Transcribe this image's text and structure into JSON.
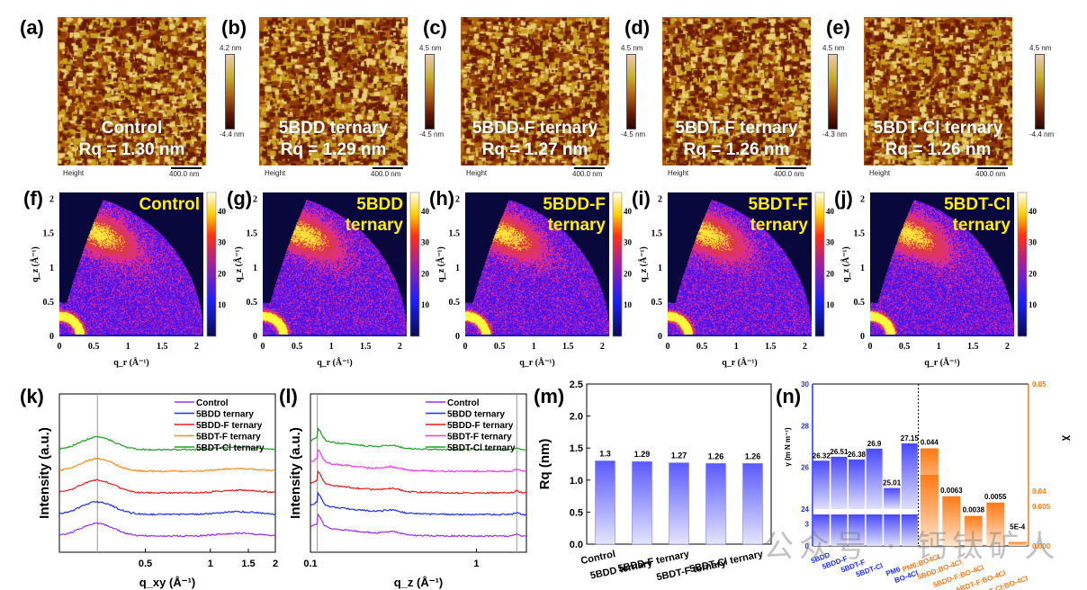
{
  "figure": {
    "panel_labels": [
      "(a)",
      "(b)",
      "(c)",
      "(d)",
      "(e)",
      "(f)",
      "(g)",
      "(h)",
      "(i)",
      "(j)",
      "(k)",
      "(l)",
      "(m)",
      "(n)"
    ],
    "watermark": "公众号 · 钙钛矿人"
  },
  "afm": [
    {
      "label": "(a)",
      "sample": "Control",
      "rq": "Rq = 1.30 nm",
      "cbar_max": "4.2 nm",
      "cbar_min": "-4.4 nm",
      "footer_left": "Height",
      "scale": "400.0 nm"
    },
    {
      "label": "(b)",
      "sample": "5BDD ternary",
      "rq": "Rq = 1.29 nm",
      "cbar_max": "4.5 nm",
      "cbar_min": "-4.5 nm",
      "footer_left": "Height",
      "scale": "400.0 nm"
    },
    {
      "label": "(c)",
      "sample": "5BDD-F ternary",
      "rq": "Rq = 1.27 nm",
      "cbar_max": "4.5 nm",
      "cbar_min": "-4.5 nm",
      "footer_left": "Height",
      "scale": "400.0 nm"
    },
    {
      "label": "(d)",
      "sample": "5BDT-F ternary",
      "rq": "Rq = 1.26 nm",
      "cbar_max": "4.5 nm",
      "cbar_min": "-4.3 nm",
      "footer_left": "Height",
      "scale": "400.0 nm"
    },
    {
      "label": "(e)",
      "sample": "5BDT-Cl ternary",
      "rq": "Rq = 1.26 nm",
      "cbar_max": "4.5 nm",
      "cbar_min": "-4.4 nm",
      "footer_left": "Height",
      "scale": "400.0 nm"
    }
  ],
  "giwaxs": [
    {
      "label": "(f)",
      "line1": "Control",
      "line2": ""
    },
    {
      "label": "(g)",
      "line1": "5BDD",
      "line2": "ternary"
    },
    {
      "label": "(h)",
      "line1": "5BDD-F",
      "line2": "ternary"
    },
    {
      "label": "(i)",
      "line1": "5BDT-F",
      "line2": "ternary"
    },
    {
      "label": "(j)",
      "line1": "5BDT-Cl",
      "line2": "ternary"
    }
  ],
  "giwaxs_axes": {
    "xlabel": "q_r (Å⁻¹)",
    "ylabel": "q_z (Å⁻¹)",
    "xticks": [
      "0",
      "0.5",
      "1",
      "1.5",
      "2"
    ],
    "yticks": [
      "0",
      "0.5",
      "1",
      "1.5",
      "2"
    ],
    "cbar_ticks": [
      "10",
      "20",
      "30",
      "40"
    ]
  },
  "chart_data": [
    {
      "panel": "(k)",
      "type": "line",
      "title": "",
      "xlabel": "q_xy (Å⁻¹)",
      "ylabel": "Intensity (a.u.)",
      "xscale": "log",
      "xlim": [
        0.2,
        2
      ],
      "xticks": [
        "0.5",
        "1",
        "1.5",
        "2"
      ],
      "reference_line_x": 0.3,
      "series": [
        {
          "name": "Control",
          "color": "#9b30ff",
          "offset": 0,
          "peaks": [
            {
              "x": 0.3,
              "h": 0.9
            },
            {
              "x": 1.35,
              "h": 0.12
            }
          ]
        },
        {
          "name": "5BDD ternary",
          "color": "#1f2fff",
          "offset": 1,
          "peaks": [
            {
              "x": 0.3,
              "h": 0.7
            },
            {
              "x": 1.35,
              "h": 0.1
            }
          ]
        },
        {
          "name": "5BDD-F ternary",
          "color": "#ee1c1c",
          "offset": 2,
          "peaks": [
            {
              "x": 0.3,
              "h": 0.8
            },
            {
              "x": 1.35,
              "h": 0.08
            }
          ]
        },
        {
          "name": "5BDT-F ternary",
          "color": "#ff8c1a",
          "offset": 3,
          "peaks": [
            {
              "x": 0.3,
              "h": 0.75
            },
            {
              "x": 1.35,
              "h": 0.08
            }
          ]
        },
        {
          "name": "5BDT-Cl ternary",
          "color": "#22a022",
          "offset": 4,
          "peaks": [
            {
              "x": 0.3,
              "h": 0.75
            },
            {
              "x": 1.35,
              "h": 0.08
            }
          ]
        }
      ],
      "legend": "top-right"
    },
    {
      "panel": "(l)",
      "type": "line",
      "title": "",
      "xlabel": "q_z (Å⁻¹)",
      "ylabel": "Intensity (a.u.)",
      "xscale": "log",
      "xlim": [
        0.1,
        2
      ],
      "xticks": [
        "0.1",
        "1"
      ],
      "reference_lines_x": [
        0.11,
        1.75
      ],
      "series": [
        {
          "name": "Control",
          "color": "#9b30ff",
          "offset": 0
        },
        {
          "name": "5BDD ternary",
          "color": "#1f2fff",
          "offset": 1
        },
        {
          "name": "5BDD-F ternary",
          "color": "#ee1c1c",
          "offset": 2
        },
        {
          "name": "5BDT-F ternary",
          "color": "#ff33ff",
          "offset": 3
        },
        {
          "name": "5BDT-Cl ternary",
          "color": "#22a022",
          "offset": 4
        }
      ],
      "legend": "top-right"
    },
    {
      "panel": "(m)",
      "type": "bar",
      "title": "",
      "categories": [
        "Control",
        "5BDD ternary",
        "5BDD-F ternary",
        "5BDT-F ternary",
        "5BDT-Cl ternary"
      ],
      "values": [
        1.3,
        1.29,
        1.27,
        1.26,
        1.26
      ],
      "value_labels": [
        "1.3",
        "1.29",
        "1.27",
        "1.26",
        "1.26"
      ],
      "xlabel": "",
      "ylabel": "Rq (nm)",
      "ylim": [
        0,
        2.5
      ],
      "yticks": [
        "0.0",
        "0.5",
        "1.0",
        "1.5",
        "2.0",
        "2.5"
      ],
      "bar_color": "#6d6dff"
    },
    {
      "panel": "(n)",
      "type": "bar",
      "title": "",
      "left_axis": {
        "label": "γ (m N m⁻¹)",
        "color": "#1f2fff",
        "broken": true,
        "ticks_low": [
          "0",
          "3"
        ],
        "ticks_high": [
          "24",
          "26",
          "28",
          "30"
        ],
        "categories": [
          "5BDD",
          "5BDD-F",
          "5BDT-F",
          "5BDT-Cl",
          "PM6",
          "BO-4Cl"
        ],
        "values": [
          26.32,
          26.51,
          26.38,
          26.9,
          25.01,
          27.15
        ],
        "value_labels": [
          "26.32",
          "26.51",
          "26.38",
          "26.9",
          "25.01",
          "27.15"
        ]
      },
      "right_axis": {
        "label": "χ",
        "color": "#ff7a14",
        "broken": true,
        "ticks_low": [
          "0.000",
          "0.005"
        ],
        "ticks_high": [
          "0.04",
          "0.05"
        ],
        "categories": [
          "PM6:BO4Cl",
          "5BDD:BO-4Cl",
          "5BDD-F:BO-4Cl",
          "5BDT-F:BO-4Cl",
          "5BDT-Cl:BO-4Cl"
        ],
        "values": [
          0.044,
          0.0063,
          0.0038,
          0.0055,
          0.0005
        ],
        "value_labels": [
          "0.044",
          "0.0063",
          "0.0038",
          "0.0055",
          "5E-4"
        ]
      }
    }
  ]
}
